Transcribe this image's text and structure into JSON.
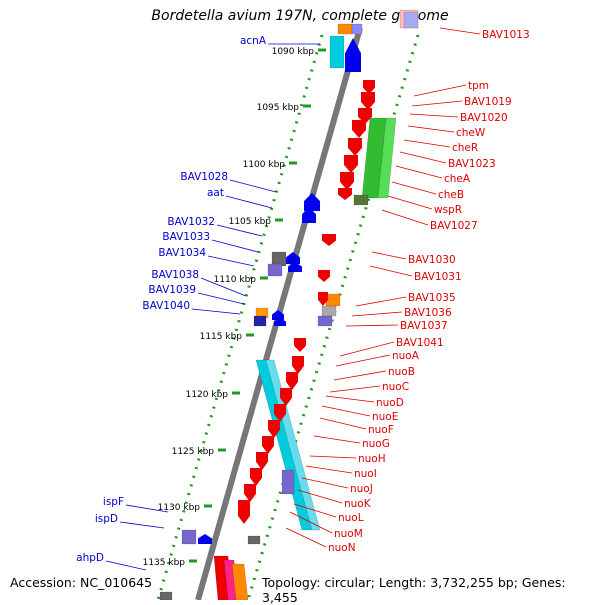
{
  "title": "Bordetella avium 197N, complete genome",
  "accession_text": "Accession: NC_010645",
  "topology_text": "Topology: circular; Length: 3,732,255 bp; Genes: 3,455",
  "ruler_labels": [
    "1090 kbp",
    "1095 kbp",
    "1100 kbp",
    "1105 kbp",
    "1110 kbp",
    "1115 kbp",
    "1120 kbp",
    "1125 kbp",
    "1130 kbp",
    "1135 kbp"
  ],
  "left_genes": [
    "acnA",
    "BAV1028",
    "aat",
    "BAV1032",
    "BAV1033",
    "BAV1034",
    "BAV1038",
    "BAV1039",
    "BAV1040",
    "ispF",
    "ispD",
    "ahpD"
  ],
  "right_genes": [
    "BAV1013",
    "tpm",
    "BAV1019",
    "BAV1020",
    "cheW",
    "cheR",
    "BAV1023",
    "cheA",
    "cheB",
    "wspR",
    "BAV1027",
    "BAV1030",
    "BAV1031",
    "BAV1035",
    "BAV1036",
    "BAV1037",
    "BAV1041",
    "nuoA",
    "nuoB",
    "nuoC",
    "nuoD",
    "nuoE",
    "nuoF",
    "nuoG",
    "nuoH",
    "nuoI",
    "nuoJ",
    "nuoK",
    "nuoL",
    "nuoM",
    "nuoN"
  ],
  "colors": {
    "left_label": "#0000cc",
    "right_label": "#dd0000",
    "forward": "#0000ee",
    "reverse": "#ee0000",
    "rna": "#00ccdd",
    "green_block": "#33bb33",
    "purple_block": "#7766cc",
    "orange_block": "#ff8800",
    "gray_block": "#666666",
    "pink_block": "#ff2288",
    "backbone": "#777777",
    "ruler_dots": "#229922"
  }
}
